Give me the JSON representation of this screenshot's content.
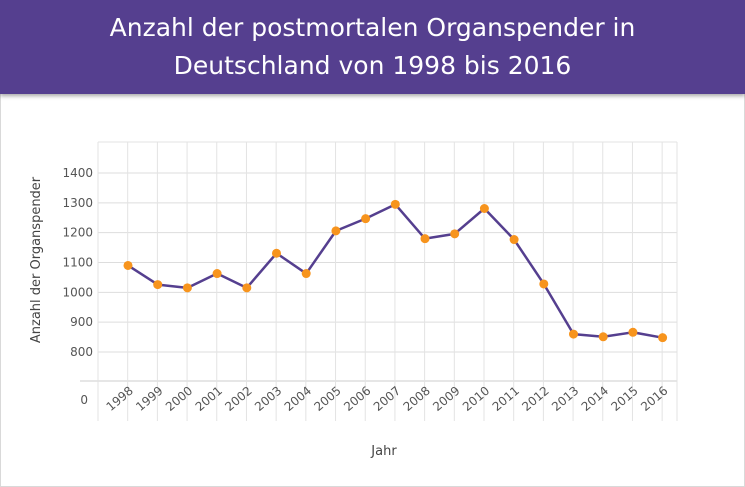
{
  "header": {
    "title": "Anzahl der postmortalen Organspender in Deutschland von 1998 bis 2016",
    "background_color": "#553f8f"
  },
  "chart_data": {
    "type": "line",
    "title": "Anzahl der postmortalen Organspender in Deutschland von 1998 bis 2016",
    "xlabel": "Jahr",
    "ylabel": "Anzahl der Organspender",
    "categories": [
      "1998",
      "1999",
      "2000",
      "2001",
      "2002",
      "2003",
      "2004",
      "2005",
      "2006",
      "2007",
      "2008",
      "2009",
      "2010",
      "2011",
      "2012",
      "2013",
      "2014",
      "2015",
      "2016"
    ],
    "values": [
      1090,
      1026,
      1015,
      1063,
      1015,
      1131,
      1063,
      1206,
      1247,
      1295,
      1180,
      1196,
      1281,
      1177,
      1028,
      860,
      851,
      866,
      848
    ],
    "ylim": [
      750,
      1450
    ],
    "y_ticks": [
      800,
      900,
      1000,
      1100,
      1200,
      1300,
      1400
    ],
    "y_zero_label": "0",
    "line_color": "#553f8f",
    "marker_color": "#f7941d",
    "grid": true
  }
}
